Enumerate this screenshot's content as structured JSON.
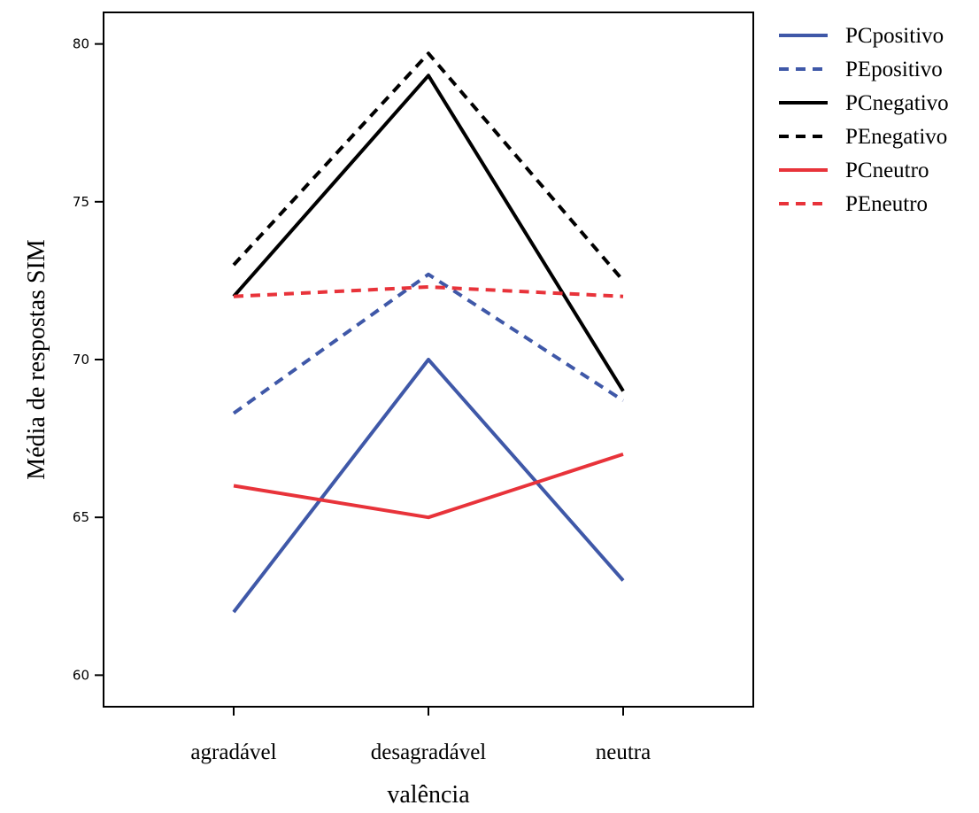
{
  "chart_data": {
    "type": "line",
    "categories": [
      "agradável",
      "desagradável",
      "neutra"
    ],
    "xlabel": "valência",
    "ylabel": "Média de respostas SIM",
    "ylim": [
      59,
      81
    ],
    "yticks": [
      60,
      65,
      70,
      75,
      80
    ],
    "grid": false,
    "legend_position": "right-top",
    "series": [
      {
        "name": "PCpositivo",
        "values": [
          62.0,
          70.0,
          63.0
        ],
        "color": "#3f58a8",
        "style": "solid"
      },
      {
        "name": "PEpositivo",
        "values": [
          68.3,
          72.7,
          68.7
        ],
        "color": "#3f58a8",
        "style": "dashed"
      },
      {
        "name": "PCnegativo",
        "values": [
          72.0,
          79.0,
          69.0
        ],
        "color": "#000000",
        "style": "solid"
      },
      {
        "name": "PEnegativo",
        "values": [
          73.0,
          79.7,
          72.5
        ],
        "color": "#000000",
        "style": "dashed"
      },
      {
        "name": "PCneutro",
        "values": [
          66.0,
          65.0,
          67.0
        ],
        "color": "#e8333a",
        "style": "solid"
      },
      {
        "name": "PEneutro",
        "values": [
          72.0,
          72.3,
          72.0
        ],
        "color": "#e8333a",
        "style": "dashed"
      }
    ]
  }
}
